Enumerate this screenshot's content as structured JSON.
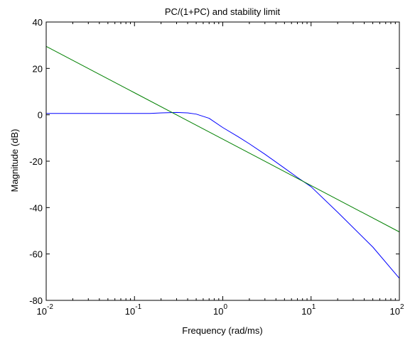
{
  "chart_data": {
    "type": "line",
    "title": "PC/(1+PC) and stability limit",
    "xlabel": "Frequency (rad/ms)",
    "ylabel": "Magnitude (dB)",
    "xscale": "log",
    "xlim": [
      0.01,
      100
    ],
    "ylim": [
      -80,
      40
    ],
    "x_ticks": [
      {
        "base": "10",
        "exp": "-2"
      },
      {
        "base": "10",
        "exp": "-1"
      },
      {
        "base": "10",
        "exp": "0"
      },
      {
        "base": "10",
        "exp": "1"
      },
      {
        "base": "10",
        "exp": "2"
      }
    ],
    "y_ticks": [
      "40",
      "20",
      "0",
      "-20",
      "-40",
      "-60",
      "-80"
    ],
    "grid": false,
    "legend": "none",
    "series": [
      {
        "color": "#0000ff",
        "x": [
          0.01,
          0.03,
          0.1,
          0.15,
          0.2,
          0.3,
          0.4,
          0.5,
          0.7,
          1,
          1.5,
          2,
          3,
          5,
          7,
          10,
          20,
          50,
          100
        ],
        "y": [
          0.6,
          0.6,
          0.6,
          0.6,
          0.8,
          1.0,
          0.8,
          0.3,
          -1.5,
          -5.5,
          -9.5,
          -12.5,
          -17,
          -23,
          -27,
          -31,
          -42,
          -57,
          -70.5
        ]
      },
      {
        "color": "#008000",
        "x": [
          0.01,
          0.1,
          1,
          10,
          100
        ],
        "y": [
          29.5,
          9.5,
          -10.5,
          -30.5,
          -50.5
        ]
      }
    ]
  }
}
